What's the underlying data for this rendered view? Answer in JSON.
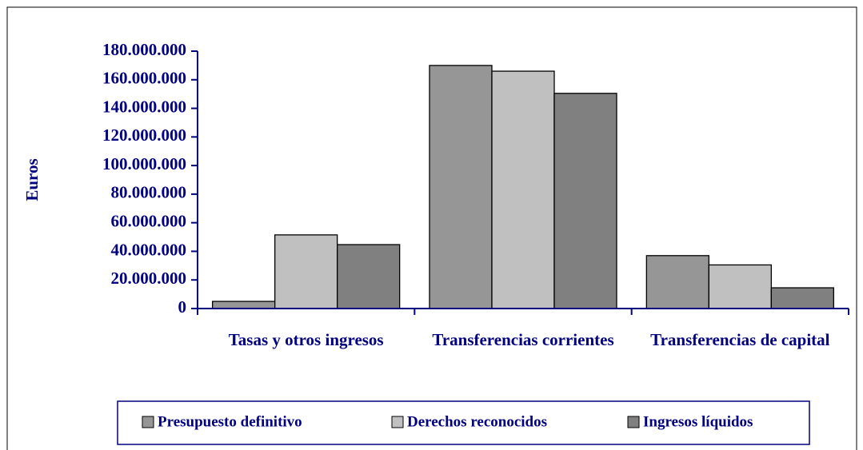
{
  "chart_data": {
    "type": "bar",
    "y_label": "Euros",
    "categories": [
      "Tasas y otros ingresos",
      "Transferencias corrientes",
      "Transferencias de capital"
    ],
    "series": [
      {
        "name": "Presupuesto definitivo",
        "color": "#969696",
        "values": [
          5000000,
          170000000,
          37000000
        ]
      },
      {
        "name": "Derechos reconocidos",
        "color": "#c0c0c0",
        "values": [
          51500000,
          166000000,
          30500000
        ]
      },
      {
        "name": "Ingresos líquidos",
        "color": "#808080",
        "values": [
          44700000,
          150500000,
          14500000
        ]
      }
    ],
    "ylim": [
      0,
      180000000
    ],
    "yticks": [
      0,
      {
        "value": 20000000,
        "label": "20.000.000"
      },
      {
        "value": 40000000,
        "label": "40.000.000"
      },
      {
        "value": 60000000,
        "label": "60.000.000"
      },
      {
        "value": 80000000,
        "label": "80.000.000"
      },
      {
        "value": 100000000,
        "label": "100.000.000"
      },
      {
        "value": 120000000,
        "label": "120.000.000"
      },
      {
        "value": 140000000,
        "label": "140.000.000"
      },
      {
        "value": 160000000,
        "label": "160.000.000"
      },
      {
        "value": 180000000,
        "label": "180.000.000"
      }
    ],
    "legend": "bottom"
  }
}
